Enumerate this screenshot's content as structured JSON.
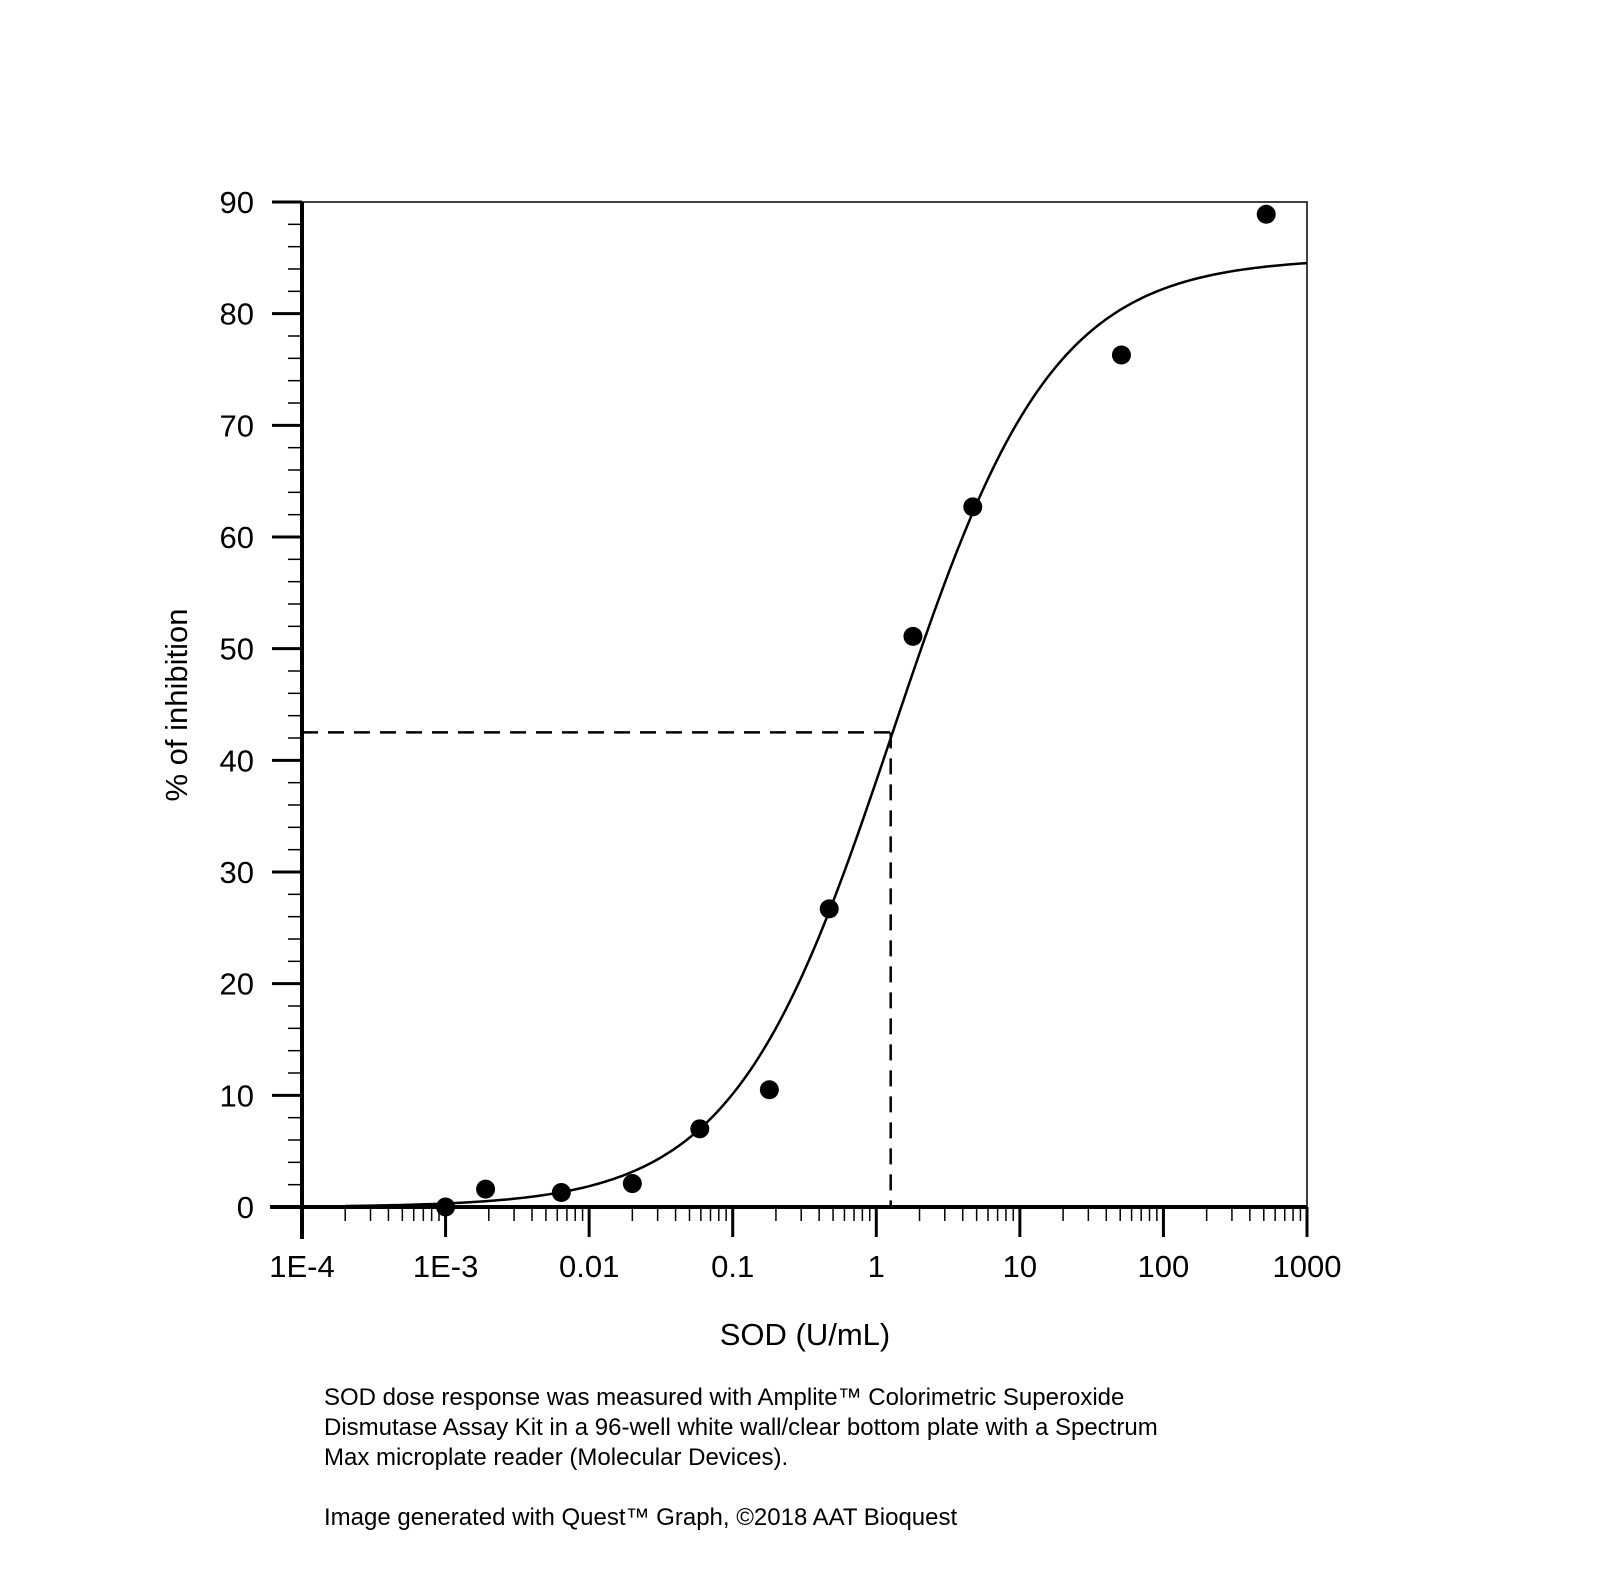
{
  "chart_data": {
    "type": "scatter",
    "title": "",
    "xlabel": "SOD (U/mL)",
    "ylabel": "% of inhibition",
    "xscale": "log",
    "xlim": [
      0.0001,
      1000
    ],
    "ylim": [
      0,
      90
    ],
    "x_ticks": [
      0.0001,
      0.001,
      0.01,
      0.1,
      1,
      10,
      100,
      1000
    ],
    "x_tick_labels": [
      "1E-4",
      "1E-3",
      "0.01",
      "0.1",
      "1",
      "10",
      "100",
      "1000"
    ],
    "y_ticks": [
      0,
      10,
      20,
      30,
      40,
      50,
      60,
      70,
      80,
      90
    ],
    "y_tick_labels": [
      "0",
      "10",
      "20",
      "30",
      "40",
      "50",
      "60",
      "70",
      "80",
      "90"
    ],
    "grid": false,
    "legend": "none",
    "series": [
      {
        "name": "SOD dose response",
        "kind": "points",
        "x": [
          0.001,
          0.0019,
          0.0064,
          0.02,
          0.059,
          0.18,
          0.47,
          1.8,
          4.7,
          51,
          520
        ],
        "y": [
          0.0,
          1.6,
          1.3,
          2.1,
          7.0,
          10.5,
          26.7,
          51.1,
          62.7,
          76.3,
          88.9
        ]
      },
      {
        "name": "Fitted curve",
        "kind": "line",
        "model": "4PL",
        "params": {
          "bottom": 0,
          "top": 85,
          "ec50": 1.3,
          "hill": 0.78
        },
        "x_range": [
          0.0002,
          1000
        ]
      }
    ],
    "annotations": [
      {
        "kind": "dashed-reference",
        "x": 1.26,
        "y": 42.5
      }
    ]
  },
  "caption": {
    "lines": [
      "SOD dose response was measured with Amplite™ Colorimetric Superoxide",
      "Dismutase Assay Kit in a 96-well white wall/clear bottom plate with a Spectrum",
      "Max microplate reader (Molecular Devices)."
    ],
    "credit": "Image generated with Quest™ Graph, ©2018 AAT Bioquest"
  }
}
